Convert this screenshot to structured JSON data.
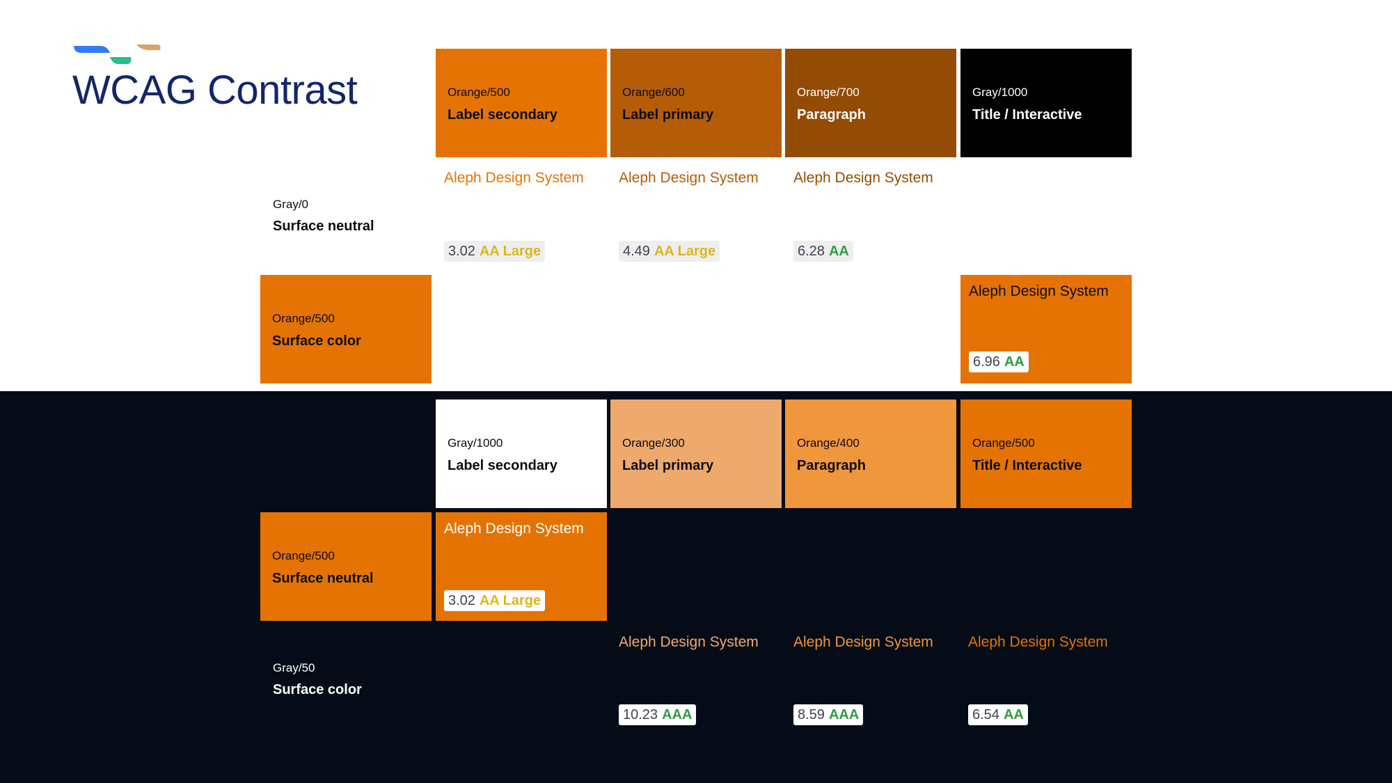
{
  "title": "WCAG Contrast",
  "colors": {
    "orange_300": "#eeaa6c",
    "orange_400": "#f0963c",
    "orange_500": "#e57303",
    "orange_600": "#b55c06",
    "orange_700": "#944b03",
    "gray_1000": "#000000",
    "gray_0": "#ffffff",
    "navy_bg": "#060c17",
    "logo_blue": "#2f7df2",
    "logo_green": "#22c08a",
    "logo_tan": "#d9a266",
    "level_yellow": "#e0b41c",
    "level_green": "#2e9e3c"
  },
  "light_section": {
    "columns": [
      {
        "token": "Orange/500",
        "role": "Label secondary"
      },
      {
        "token": "Orange/600",
        "role": "Label primary"
      },
      {
        "token": "Orange/700",
        "role": "Paragraph"
      },
      {
        "token": "Gray/1000",
        "role": "Title / Interactive"
      }
    ],
    "rows": [
      {
        "token": "Gray/0",
        "role": "Surface neutral"
      },
      {
        "token": "Orange/500",
        "role": "Surface color"
      }
    ],
    "samples": [
      {
        "text": "Aleph Design System",
        "ratio": "3.02",
        "level": "AA Large"
      },
      {
        "text": "Aleph Design System",
        "ratio": "4.49",
        "level": "AA Large"
      },
      {
        "text": "Aleph Design System",
        "ratio": "6.28",
        "level": "AA"
      },
      {
        "text": "Aleph Design System",
        "ratio": "6.96",
        "level": "AA"
      }
    ]
  },
  "dark_section": {
    "columns": [
      {
        "token": "Gray/1000",
        "role": "Label secondary"
      },
      {
        "token": "Orange/300",
        "role": "Label primary"
      },
      {
        "token": "Orange/400",
        "role": "Paragraph"
      },
      {
        "token": "Orange/500",
        "role": "Title / Interactive"
      }
    ],
    "rows": [
      {
        "token": "Orange/500",
        "role": "Surface neutral"
      },
      {
        "token": "Gray/50",
        "role": "Surface color"
      }
    ],
    "samples": [
      {
        "text": "Aleph Design System",
        "ratio": "3.02",
        "level": "AA Large"
      },
      {
        "text": "Aleph Design System",
        "ratio": "10.23",
        "level": "AAA"
      },
      {
        "text": "Aleph Design System",
        "ratio": "8.59",
        "level": "AAA"
      },
      {
        "text": "Aleph Design System",
        "ratio": "6.54",
        "level": "AA"
      }
    ]
  }
}
